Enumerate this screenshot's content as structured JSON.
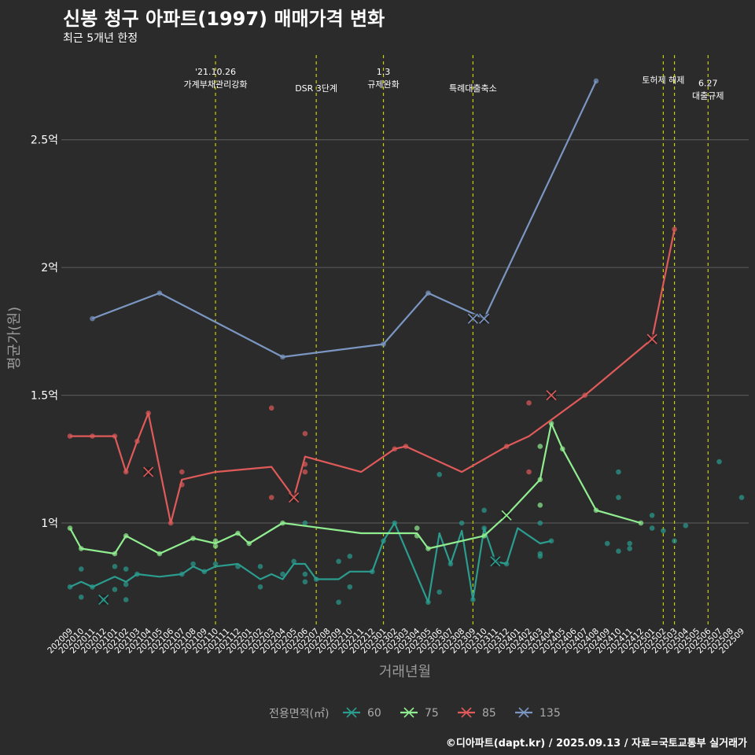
{
  "page": {
    "title": "신봉 청구 아파트(1997) 매매가격 변화",
    "subtitle": "최근 5개년 한정",
    "caption": "©디아파트(dapt.kr) / 2025.09.13 / 자료=국토교통부 실거래가"
  },
  "chart_data": {
    "type": "line",
    "xlabel": "거래년월",
    "ylabel": "평균가(원)",
    "ylim": [
      0.6,
      2.85
    ],
    "y_ticks": [
      {
        "value": 1.0,
        "label": "1억"
      },
      {
        "value": 1.5,
        "label": "1.5억"
      },
      {
        "value": 2.0,
        "label": "2억"
      },
      {
        "value": 2.5,
        "label": "2.5억"
      }
    ],
    "categories": [
      "202009",
      "202010",
      "202011",
      "202012",
      "202101",
      "202102",
      "202103",
      "202104",
      "202105",
      "202106",
      "202107",
      "202108",
      "202109",
      "202110",
      "202111",
      "202112",
      "202201",
      "202202",
      "202203",
      "202204",
      "202205",
      "202206",
      "202207",
      "202208",
      "202209",
      "202210",
      "202211",
      "202212",
      "202301",
      "202302",
      "202303",
      "202304",
      "202305",
      "202306",
      "202307",
      "202308",
      "202309",
      "202310",
      "202311",
      "202312",
      "202401",
      "202402",
      "202403",
      "202404",
      "202405",
      "202406",
      "202407",
      "202408",
      "202409",
      "202410",
      "202411",
      "202412",
      "202501",
      "202502",
      "202503",
      "202504",
      "202505",
      "202506",
      "202507",
      "202508",
      "202509"
    ],
    "legend_title": "전용면적(㎡)",
    "legend_position": "bottom",
    "series": [
      {
        "name": "60",
        "color": "#2a9d8f",
        "line": [
          [
            "202009",
            0.75
          ],
          [
            "202010",
            0.77
          ],
          [
            "202011",
            0.75
          ],
          [
            "202101",
            0.79
          ],
          [
            "202102",
            0.77
          ],
          [
            "202103",
            0.8
          ],
          [
            "202105",
            0.79
          ],
          [
            "202107",
            0.8
          ],
          [
            "202108",
            0.83
          ],
          [
            "202109",
            0.81
          ],
          [
            "202110",
            0.83
          ],
          [
            "202112",
            0.84
          ],
          [
            "202202",
            0.78
          ],
          [
            "202203",
            0.8
          ],
          [
            "202204",
            0.78
          ],
          [
            "202205",
            0.84
          ],
          [
            "202206",
            0.84
          ],
          [
            "202207",
            0.78
          ],
          [
            "202209",
            0.78
          ],
          [
            "202210",
            0.81
          ],
          [
            "202212",
            0.81
          ],
          [
            "202301",
            0.93
          ],
          [
            "202302",
            1.0
          ],
          [
            "202305",
            0.69
          ],
          [
            "202306",
            0.96
          ],
          [
            "202307",
            0.84
          ],
          [
            "202308",
            0.97
          ],
          [
            "202309",
            0.7
          ],
          [
            "202310",
            0.98
          ],
          [
            "202311",
            0.85
          ],
          [
            "202312",
            0.84
          ],
          [
            "202401",
            0.98
          ],
          [
            "202402",
            0.95
          ],
          [
            "202403",
            0.92
          ],
          [
            "202404",
            0.93
          ]
        ],
        "points": [
          [
            "202009",
            0.75
          ],
          [
            "202010",
            0.82
          ],
          [
            "202010",
            0.71
          ],
          [
            "202011",
            0.75
          ],
          [
            "202012",
            0.7
          ],
          [
            "202101",
            0.83
          ],
          [
            "202101",
            0.74
          ],
          [
            "202102",
            0.82
          ],
          [
            "202102",
            0.76
          ],
          [
            "202102",
            0.7
          ],
          [
            "202103",
            0.8
          ],
          [
            "202107",
            0.8
          ],
          [
            "202108",
            0.84
          ],
          [
            "202109",
            0.81
          ],
          [
            "202110",
            0.84
          ],
          [
            "202112",
            0.83
          ],
          [
            "202202",
            0.83
          ],
          [
            "202202",
            0.75
          ],
          [
            "202204",
            0.8
          ],
          [
            "202205",
            0.85
          ],
          [
            "202206",
            1.0
          ],
          [
            "202206",
            0.8
          ],
          [
            "202206",
            0.77
          ],
          [
            "202207",
            0.78
          ],
          [
            "202209",
            0.85
          ],
          [
            "202209",
            0.69
          ],
          [
            "202210",
            0.87
          ],
          [
            "202210",
            0.75
          ],
          [
            "202212",
            0.81
          ],
          [
            "202301",
            0.93
          ],
          [
            "202302",
            1.0
          ],
          [
            "202305",
            0.69
          ],
          [
            "202306",
            1.19
          ],
          [
            "202306",
            0.73
          ],
          [
            "202307",
            0.84
          ],
          [
            "202308",
            1.0
          ],
          [
            "202309",
            0.7
          ],
          [
            "202310",
            1.05
          ],
          [
            "202310",
            0.98
          ],
          [
            "202312",
            0.84
          ],
          [
            "202403",
            1.0
          ],
          [
            "202403",
            0.88
          ],
          [
            "202403",
            0.87
          ],
          [
            "202404",
            0.93
          ],
          [
            "202409",
            0.92
          ],
          [
            "202410",
            1.2
          ],
          [
            "202410",
            1.1
          ],
          [
            "202410",
            0.89
          ],
          [
            "202411",
            0.92
          ],
          [
            "202411",
            0.9
          ],
          [
            "202501",
            1.03
          ],
          [
            "202501",
            0.98
          ],
          [
            "202502",
            0.97
          ],
          [
            "202503",
            0.93
          ],
          [
            "202504",
            0.99
          ],
          [
            "202507",
            1.24
          ],
          [
            "202509",
            1.1
          ]
        ],
        "x_marks": [
          [
            "202012",
            0.7
          ],
          [
            "202311",
            0.85
          ]
        ]
      },
      {
        "name": "75",
        "color": "#90ee90",
        "line": [
          [
            "202009",
            0.98
          ],
          [
            "202010",
            0.9
          ],
          [
            "202101",
            0.88
          ],
          [
            "202102",
            0.95
          ],
          [
            "202105",
            0.88
          ],
          [
            "202108",
            0.94
          ],
          [
            "202110",
            0.92
          ],
          [
            "202112",
            0.96
          ],
          [
            "202201",
            0.92
          ],
          [
            "202204",
            1.0
          ],
          [
            "202211",
            0.96
          ],
          [
            "202304",
            0.96
          ],
          [
            "202305",
            0.9
          ],
          [
            "202310",
            0.95
          ],
          [
            "202312",
            1.03
          ],
          [
            "202403",
            1.17
          ],
          [
            "202404",
            1.39
          ],
          [
            "202405",
            1.29
          ],
          [
            "202408",
            1.05
          ],
          [
            "202412",
            1.0
          ]
        ],
        "points": [
          [
            "202009",
            0.98
          ],
          [
            "202010",
            0.9
          ],
          [
            "202101",
            0.88
          ],
          [
            "202102",
            0.95
          ],
          [
            "202105",
            0.88
          ],
          [
            "202108",
            0.94
          ],
          [
            "202110",
            0.93
          ],
          [
            "202110",
            0.91
          ],
          [
            "202112",
            0.96
          ],
          [
            "202201",
            0.92
          ],
          [
            "202204",
            1.0
          ],
          [
            "202304",
            0.98
          ],
          [
            "202304",
            0.95
          ],
          [
            "202305",
            0.9
          ],
          [
            "202310",
            0.95
          ],
          [
            "202403",
            1.3
          ],
          [
            "202403",
            1.07
          ],
          [
            "202403",
            1.17
          ],
          [
            "202404",
            1.39
          ],
          [
            "202405",
            1.29
          ],
          [
            "202408",
            1.05
          ],
          [
            "202412",
            1.0
          ]
        ],
        "x_marks": [
          [
            "202312",
            1.03
          ]
        ]
      },
      {
        "name": "85",
        "color": "#e05a5a",
        "line": [
          [
            "202009",
            1.34
          ],
          [
            "202011",
            1.34
          ],
          [
            "202101",
            1.34
          ],
          [
            "202102",
            1.2
          ],
          [
            "202103",
            1.32
          ],
          [
            "202104",
            1.43
          ],
          [
            "202106",
            1.0
          ],
          [
            "202107",
            1.17
          ],
          [
            "202110",
            1.2
          ],
          [
            "202203",
            1.22
          ],
          [
            "202205",
            1.1
          ],
          [
            "202206",
            1.26
          ],
          [
            "202211",
            1.2
          ],
          [
            "202302",
            1.29
          ],
          [
            "202303",
            1.3
          ],
          [
            "202308",
            1.2
          ],
          [
            "202312",
            1.3
          ],
          [
            "202402",
            1.34
          ],
          [
            "202407",
            1.5
          ],
          [
            "202501",
            1.72
          ],
          [
            "202503",
            2.15
          ]
        ],
        "points": [
          [
            "202009",
            1.34
          ],
          [
            "202011",
            1.34
          ],
          [
            "202101",
            1.34
          ],
          [
            "202102",
            1.2
          ],
          [
            "202103",
            1.32
          ],
          [
            "202104",
            1.43
          ],
          [
            "202106",
            1.0
          ],
          [
            "202107",
            1.2
          ],
          [
            "202107",
            1.15
          ],
          [
            "202203",
            1.45
          ],
          [
            "202203",
            1.1
          ],
          [
            "202206",
            1.35
          ],
          [
            "202206",
            1.23
          ],
          [
            "202206",
            1.2
          ],
          [
            "202302",
            1.29
          ],
          [
            "202303",
            1.3
          ],
          [
            "202312",
            1.3
          ],
          [
            "202402",
            1.47
          ],
          [
            "202402",
            1.2
          ],
          [
            "202407",
            1.5
          ],
          [
            "202503",
            2.15
          ]
        ],
        "x_marks": [
          [
            "202104",
            1.2
          ],
          [
            "202205",
            1.1
          ],
          [
            "202404",
            1.5
          ],
          [
            "202501",
            1.72
          ]
        ]
      },
      {
        "name": "135",
        "color": "#7b96c2",
        "line": [
          [
            "202011",
            1.8
          ],
          [
            "202105",
            1.9
          ],
          [
            "202204",
            1.65
          ],
          [
            "202301",
            1.7
          ],
          [
            "202305",
            1.9
          ],
          [
            "202310",
            1.8
          ],
          [
            "202408",
            2.73
          ]
        ],
        "points": [
          [
            "202011",
            1.8
          ],
          [
            "202105",
            1.9
          ],
          [
            "202204",
            1.65
          ],
          [
            "202301",
            1.7
          ],
          [
            "202305",
            1.9
          ],
          [
            "202408",
            2.73
          ]
        ],
        "x_marks": [
          [
            "202309",
            1.8
          ],
          [
            "202310",
            1.8
          ]
        ]
      }
    ],
    "annotations": [
      {
        "x": "202110",
        "lines": [
          "'21.10.26",
          "가계부채관리강화"
        ],
        "level": 0
      },
      {
        "x": "202207",
        "lines": [
          "DSR 3단계"
        ],
        "level": 1
      },
      {
        "x": "202301",
        "lines": [
          "1.3",
          "규제완화"
        ],
        "level": 0
      },
      {
        "x": "202309",
        "lines": [
          "특례대출축소"
        ],
        "level": 1
      },
      {
        "x": "202502",
        "lines": [
          "토허제 해제"
        ],
        "level": 0.5
      },
      {
        "x": "202503",
        "lines": [],
        "level": 0
      },
      {
        "x": "202506",
        "lines": [
          "6.27",
          "대출규제"
        ],
        "level": 0.7
      }
    ],
    "grid": true
  }
}
